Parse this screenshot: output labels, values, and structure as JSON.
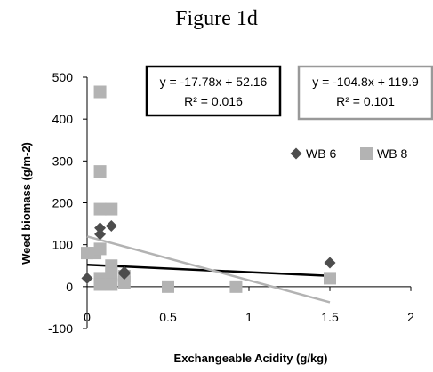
{
  "chart_data": {
    "type": "scatter",
    "title": "Figure 1d",
    "xlabel": "Exchangeable Acidity (g/kg)",
    "ylabel": "Weed biomass (g/m-2)",
    "xlim": [
      0,
      2
    ],
    "ylim": [
      -100,
      500
    ],
    "xticks": [
      0,
      0.5,
      1,
      1.5,
      2
    ],
    "yticks": [
      -100,
      0,
      100,
      200,
      300,
      400,
      500
    ],
    "grid": false,
    "legend_position": "right",
    "series": [
      {
        "name": "WB 6",
        "marker": "diamond",
        "color": "#4d4d4d",
        "x": [
          0,
          0.08,
          0.08,
          0.15,
          0.23,
          0.23,
          1.5
        ],
        "y": [
          20,
          125,
          140,
          145,
          35,
          30,
          57
        ],
        "trendline": {
          "equation": "y = -17.78x + 52.16",
          "r2": "R² = 0.016",
          "slope": -17.78,
          "intercept": 52.16,
          "x_range": [
            0,
            1.5
          ],
          "color": "#000000"
        }
      },
      {
        "name": "WB 8",
        "marker": "square",
        "color": "#b3b3b3",
        "x": [
          0,
          0.05,
          0.08,
          0.08,
          0.08,
          0.08,
          0.08,
          0.08,
          0.15,
          0.15,
          0.15,
          0.15,
          0.23,
          0.23,
          0.5,
          0.92,
          1.5
        ],
        "y": [
          80,
          80,
          465,
          275,
          185,
          90,
          20,
          5,
          185,
          50,
          30,
          5,
          25,
          10,
          0,
          0,
          20
        ],
        "trendline": {
          "equation": "y = -104.8x + 119.9",
          "r2": "R² = 0.101",
          "slope": -104.8,
          "intercept": 119.9,
          "x_range": [
            0,
            1.5
          ],
          "color": "#b3b3b3"
        }
      }
    ]
  }
}
